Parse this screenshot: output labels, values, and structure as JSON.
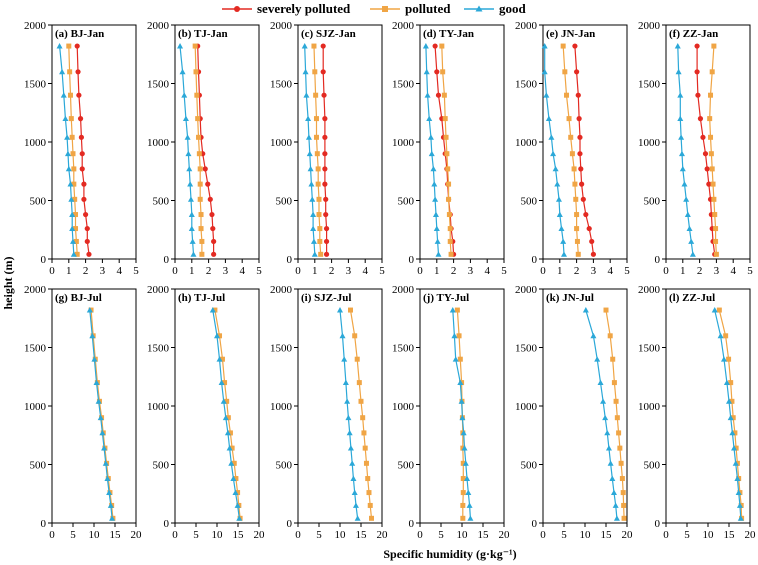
{
  "legend": {
    "severe_label": "severely polluted",
    "polluted_label": "polluted",
    "good_label": "good"
  },
  "xlabel": "Specific humidity (g·kg⁻¹)",
  "ylabel": "height (m)",
  "colors": {
    "severe": "#e32a22",
    "polluted": "#f0a545",
    "good": "#2ba8d8"
  },
  "chart_data": [
    {
      "type": "line",
      "title": "(a) BJ-Jan",
      "xlim": [
        0,
        5
      ],
      "ylim": [
        0,
        2000
      ],
      "xticks": [
        0,
        1,
        2,
        3,
        4,
        5
      ],
      "yticks": [
        0,
        500,
        1000,
        1500,
        2000
      ],
      "y": [
        40,
        150,
        260,
        380,
        510,
        640,
        770,
        900,
        1040,
        1200,
        1400,
        1600,
        1820
      ],
      "series": [
        {
          "key": "severe",
          "values": [
            2.2,
            2.1,
            2.1,
            2.0,
            1.9,
            1.9,
            1.8,
            1.8,
            1.75,
            1.7,
            1.6,
            1.55,
            1.5
          ]
        },
        {
          "key": "polluted",
          "values": [
            1.5,
            1.45,
            1.4,
            1.4,
            1.35,
            1.3,
            1.3,
            1.25,
            1.2,
            1.15,
            1.1,
            1.05,
            1.0
          ]
        },
        {
          "key": "good",
          "values": [
            1.3,
            1.25,
            1.2,
            1.2,
            1.15,
            1.1,
            1.0,
            0.95,
            0.9,
            0.8,
            0.7,
            0.6,
            0.45
          ]
        }
      ]
    },
    {
      "type": "line",
      "title": "(b) TJ-Jan",
      "xlim": [
        0,
        5
      ],
      "ylim": [
        0,
        2000
      ],
      "xticks": [
        0,
        1,
        2,
        3,
        4,
        5
      ],
      "yticks": [
        0,
        500,
        1000,
        1500,
        2000
      ],
      "y": [
        40,
        150,
        260,
        380,
        510,
        640,
        770,
        900,
        1040,
        1200,
        1400,
        1600,
        1820
      ],
      "series": [
        {
          "key": "severe",
          "values": [
            2.3,
            2.3,
            2.25,
            2.2,
            2.1,
            1.95,
            1.8,
            1.65,
            1.55,
            1.5,
            1.45,
            1.4,
            1.35
          ]
        },
        {
          "key": "polluted",
          "values": [
            1.6,
            1.6,
            1.55,
            1.55,
            1.5,
            1.5,
            1.5,
            1.45,
            1.4,
            1.35,
            1.3,
            1.25,
            1.2
          ]
        },
        {
          "key": "good",
          "values": [
            1.1,
            1.05,
            1.0,
            1.0,
            0.95,
            0.9,
            0.85,
            0.8,
            0.75,
            0.65,
            0.55,
            0.45,
            0.3
          ]
        }
      ]
    },
    {
      "type": "line",
      "title": "(c) SJZ-Jan",
      "xlim": [
        0,
        5
      ],
      "ylim": [
        0,
        2000
      ],
      "xticks": [
        0,
        1,
        2,
        3,
        4,
        5
      ],
      "yticks": [
        0,
        500,
        1000,
        1500,
        2000
      ],
      "y": [
        40,
        150,
        260,
        380,
        510,
        640,
        770,
        900,
        1040,
        1200,
        1400,
        1600,
        1820
      ],
      "series": [
        {
          "key": "severe",
          "values": [
            1.7,
            1.7,
            1.7,
            1.65,
            1.65,
            1.6,
            1.6,
            1.6,
            1.6,
            1.6,
            1.55,
            1.5,
            1.5
          ]
        },
        {
          "key": "polluted",
          "values": [
            1.35,
            1.3,
            1.3,
            1.25,
            1.25,
            1.2,
            1.2,
            1.15,
            1.1,
            1.1,
            1.05,
            1.0,
            0.95
          ]
        },
        {
          "key": "good",
          "values": [
            1.0,
            0.95,
            0.9,
            0.9,
            0.85,
            0.8,
            0.75,
            0.7,
            0.65,
            0.6,
            0.5,
            0.45,
            0.4
          ]
        }
      ]
    },
    {
      "type": "line",
      "title": "(d) TY-Jan",
      "xlim": [
        0,
        5
      ],
      "ylim": [
        0,
        2000
      ],
      "xticks": [
        0,
        1,
        2,
        3,
        4,
        5
      ],
      "yticks": [
        0,
        500,
        1000,
        1500,
        2000
      ],
      "y": [
        40,
        150,
        260,
        380,
        510,
        640,
        770,
        900,
        1040,
        1200,
        1400,
        1600,
        1820
      ],
      "series": [
        {
          "key": "severe",
          "values": [
            2.0,
            1.95,
            1.85,
            1.8,
            1.7,
            1.65,
            1.6,
            1.5,
            1.4,
            1.3,
            1.1,
            1.0,
            0.9
          ]
        },
        {
          "key": "polluted",
          "values": [
            1.85,
            1.8,
            1.8,
            1.75,
            1.7,
            1.7,
            1.65,
            1.6,
            1.55,
            1.5,
            1.45,
            1.35,
            1.3
          ]
        },
        {
          "key": "good",
          "values": [
            1.1,
            1.05,
            1.0,
            0.95,
            0.9,
            0.85,
            0.8,
            0.7,
            0.65,
            0.55,
            0.45,
            0.4,
            0.35
          ]
        }
      ]
    },
    {
      "type": "line",
      "title": "(e) JN-Jan",
      "xlim": [
        0,
        5
      ],
      "ylim": [
        0,
        2000
      ],
      "xticks": [
        0,
        1,
        2,
        3,
        4,
        5
      ],
      "yticks": [
        0,
        500,
        1000,
        1500,
        2000
      ],
      "y": [
        40,
        150,
        260,
        380,
        510,
        640,
        770,
        900,
        1040,
        1200,
        1400,
        1600,
        1820
      ],
      "series": [
        {
          "key": "severe",
          "values": [
            3.0,
            2.9,
            2.75,
            2.55,
            2.4,
            2.3,
            2.25,
            2.2,
            2.2,
            2.15,
            2.1,
            2.0,
            1.9
          ]
        },
        {
          "key": "polluted",
          "values": [
            2.1,
            2.05,
            2.0,
            2.0,
            1.95,
            1.9,
            1.85,
            1.75,
            1.65,
            1.55,
            1.4,
            1.3,
            1.2
          ]
        },
        {
          "key": "good",
          "values": [
            1.25,
            1.2,
            1.1,
            1.0,
            0.95,
            0.85,
            0.75,
            0.6,
            0.5,
            0.35,
            0.2,
            0.1,
            0.1
          ]
        }
      ]
    },
    {
      "type": "line",
      "title": "(f) ZZ-Jan",
      "xlim": [
        0,
        5
      ],
      "ylim": [
        0,
        2000
      ],
      "xticks": [
        0,
        1,
        2,
        3,
        4,
        5
      ],
      "yticks": [
        0,
        500,
        1000,
        1500,
        2000
      ],
      "y": [
        40,
        150,
        260,
        380,
        510,
        640,
        770,
        900,
        1040,
        1200,
        1400,
        1600,
        1820
      ],
      "series": [
        {
          "key": "severe",
          "values": [
            2.9,
            2.8,
            2.75,
            2.7,
            2.65,
            2.55,
            2.45,
            2.35,
            2.2,
            2.05,
            1.9,
            1.85,
            1.85
          ]
        },
        {
          "key": "polluted",
          "values": [
            3.0,
            2.95,
            2.95,
            2.9,
            2.85,
            2.8,
            2.75,
            2.7,
            2.65,
            2.6,
            2.65,
            2.75,
            2.85
          ]
        },
        {
          "key": "good",
          "values": [
            1.6,
            1.5,
            1.4,
            1.3,
            1.2,
            1.1,
            1.0,
            0.95,
            0.9,
            0.85,
            0.85,
            0.75,
            0.7
          ]
        }
      ]
    },
    {
      "type": "line",
      "title": "(g) BJ-Jul",
      "xlim": [
        0,
        20
      ],
      "ylim": [
        0,
        2000
      ],
      "xticks": [
        0,
        5,
        10,
        15,
        20
      ],
      "yticks": [
        0,
        500,
        1000,
        1500,
        2000
      ],
      "y": [
        40,
        150,
        260,
        380,
        510,
        640,
        770,
        900,
        1040,
        1200,
        1400,
        1600,
        1820
      ],
      "series": [
        {
          "key": "polluted",
          "values": [
            14.5,
            14.2,
            13.8,
            13.4,
            13.0,
            12.6,
            12.2,
            11.8,
            11.3,
            10.8,
            10.3,
            9.8,
            9.3
          ]
        },
        {
          "key": "good",
          "values": [
            14.3,
            14.0,
            13.6,
            13.2,
            12.8,
            12.4,
            12.0,
            11.6,
            11.1,
            10.6,
            10.1,
            9.6,
            9.0
          ]
        }
      ]
    },
    {
      "type": "line",
      "title": "(h) TJ-Jul",
      "xlim": [
        0,
        20
      ],
      "ylim": [
        0,
        2000
      ],
      "xticks": [
        0,
        5,
        10,
        15,
        20
      ],
      "yticks": [
        0,
        500,
        1000,
        1500,
        2000
      ],
      "y": [
        40,
        150,
        260,
        380,
        510,
        640,
        770,
        900,
        1040,
        1200,
        1400,
        1600,
        1820
      ],
      "series": [
        {
          "key": "polluted",
          "values": [
            15.5,
            15.2,
            14.9,
            14.5,
            14.1,
            13.6,
            13.2,
            12.7,
            12.3,
            11.8,
            11.3,
            10.6,
            9.5
          ]
        },
        {
          "key": "good",
          "values": [
            15.3,
            14.9,
            14.4,
            13.9,
            13.4,
            13.0,
            12.6,
            12.1,
            11.6,
            11.1,
            10.6,
            10.0,
            9.0
          ]
        }
      ]
    },
    {
      "type": "line",
      "title": "(i) SJZ-Jul",
      "xlim": [
        0,
        20
      ],
      "ylim": [
        0,
        2000
      ],
      "xticks": [
        0,
        5,
        10,
        15,
        20
      ],
      "yticks": [
        0,
        500,
        1000,
        1500,
        2000
      ],
      "y": [
        40,
        150,
        260,
        380,
        510,
        640,
        770,
        900,
        1040,
        1200,
        1400,
        1600,
        1820
      ],
      "series": [
        {
          "key": "polluted",
          "values": [
            17.5,
            17.2,
            16.9,
            16.6,
            16.3,
            16.0,
            15.7,
            15.4,
            15.0,
            14.6,
            14.1,
            13.5,
            12.5
          ]
        },
        {
          "key": "good",
          "values": [
            14.2,
            13.8,
            13.5,
            13.2,
            12.9,
            12.6,
            12.3,
            12.0,
            11.7,
            11.4,
            11.0,
            10.6,
            10.0
          ]
        }
      ]
    },
    {
      "type": "line",
      "title": "(j) TY-Jul",
      "xlim": [
        0,
        20
      ],
      "ylim": [
        0,
        2000
      ],
      "xticks": [
        0,
        5,
        10,
        15,
        20
      ],
      "yticks": [
        0,
        500,
        1000,
        1500,
        2000
      ],
      "y": [
        40,
        150,
        260,
        380,
        510,
        640,
        770,
        900,
        1040,
        1200,
        1400,
        1600,
        1820
      ],
      "series": [
        {
          "key": "polluted",
          "values": [
            10.2,
            10.2,
            10.3,
            10.3,
            10.3,
            10.2,
            10.2,
            10.1,
            10.0,
            9.9,
            9.6,
            9.3,
            8.9
          ]
        },
        {
          "key": "good",
          "values": [
            12.0,
            11.8,
            11.5,
            11.2,
            10.9,
            10.6,
            10.4,
            10.1,
            9.9,
            9.6,
            8.5,
            8.2,
            7.8
          ]
        }
      ]
    },
    {
      "type": "line",
      "title": "(k) JN-Jul",
      "xlim": [
        0,
        20
      ],
      "ylim": [
        0,
        2000
      ],
      "xticks": [
        0,
        5,
        10,
        15,
        20
      ],
      "yticks": [
        0,
        500,
        1000,
        1500,
        2000
      ],
      "y": [
        40,
        150,
        260,
        380,
        510,
        640,
        770,
        900,
        1040,
        1200,
        1400,
        1600,
        1820
      ],
      "series": [
        {
          "key": "polluted",
          "values": [
            19.3,
            19.2,
            19.1,
            18.9,
            18.6,
            18.3,
            18.0,
            17.7,
            17.4,
            17.0,
            16.6,
            16.0,
            15.0
          ]
        },
        {
          "key": "good",
          "values": [
            17.6,
            17.3,
            16.9,
            16.5,
            16.1,
            15.7,
            15.3,
            14.8,
            14.3,
            13.7,
            12.9,
            12.0,
            10.2
          ]
        }
      ]
    },
    {
      "type": "line",
      "title": "(l) ZZ-Jul",
      "xlim": [
        0,
        20
      ],
      "ylim": [
        0,
        2000
      ],
      "xticks": [
        0,
        5,
        10,
        15,
        20
      ],
      "yticks": [
        0,
        500,
        1000,
        1500,
        2000
      ],
      "y": [
        40,
        150,
        260,
        380,
        510,
        640,
        770,
        900,
        1040,
        1200,
        1400,
        1600,
        1820
      ],
      "series": [
        {
          "key": "polluted",
          "values": [
            18.0,
            17.9,
            17.6,
            17.3,
            17.0,
            16.7,
            16.4,
            16.0,
            15.7,
            15.4,
            14.9,
            14.2,
            12.7
          ]
        },
        {
          "key": "good",
          "values": [
            17.8,
            17.6,
            17.3,
            17.0,
            16.6,
            16.2,
            15.8,
            15.4,
            15.0,
            14.5,
            13.8,
            13.0,
            11.6
          ]
        }
      ]
    }
  ]
}
